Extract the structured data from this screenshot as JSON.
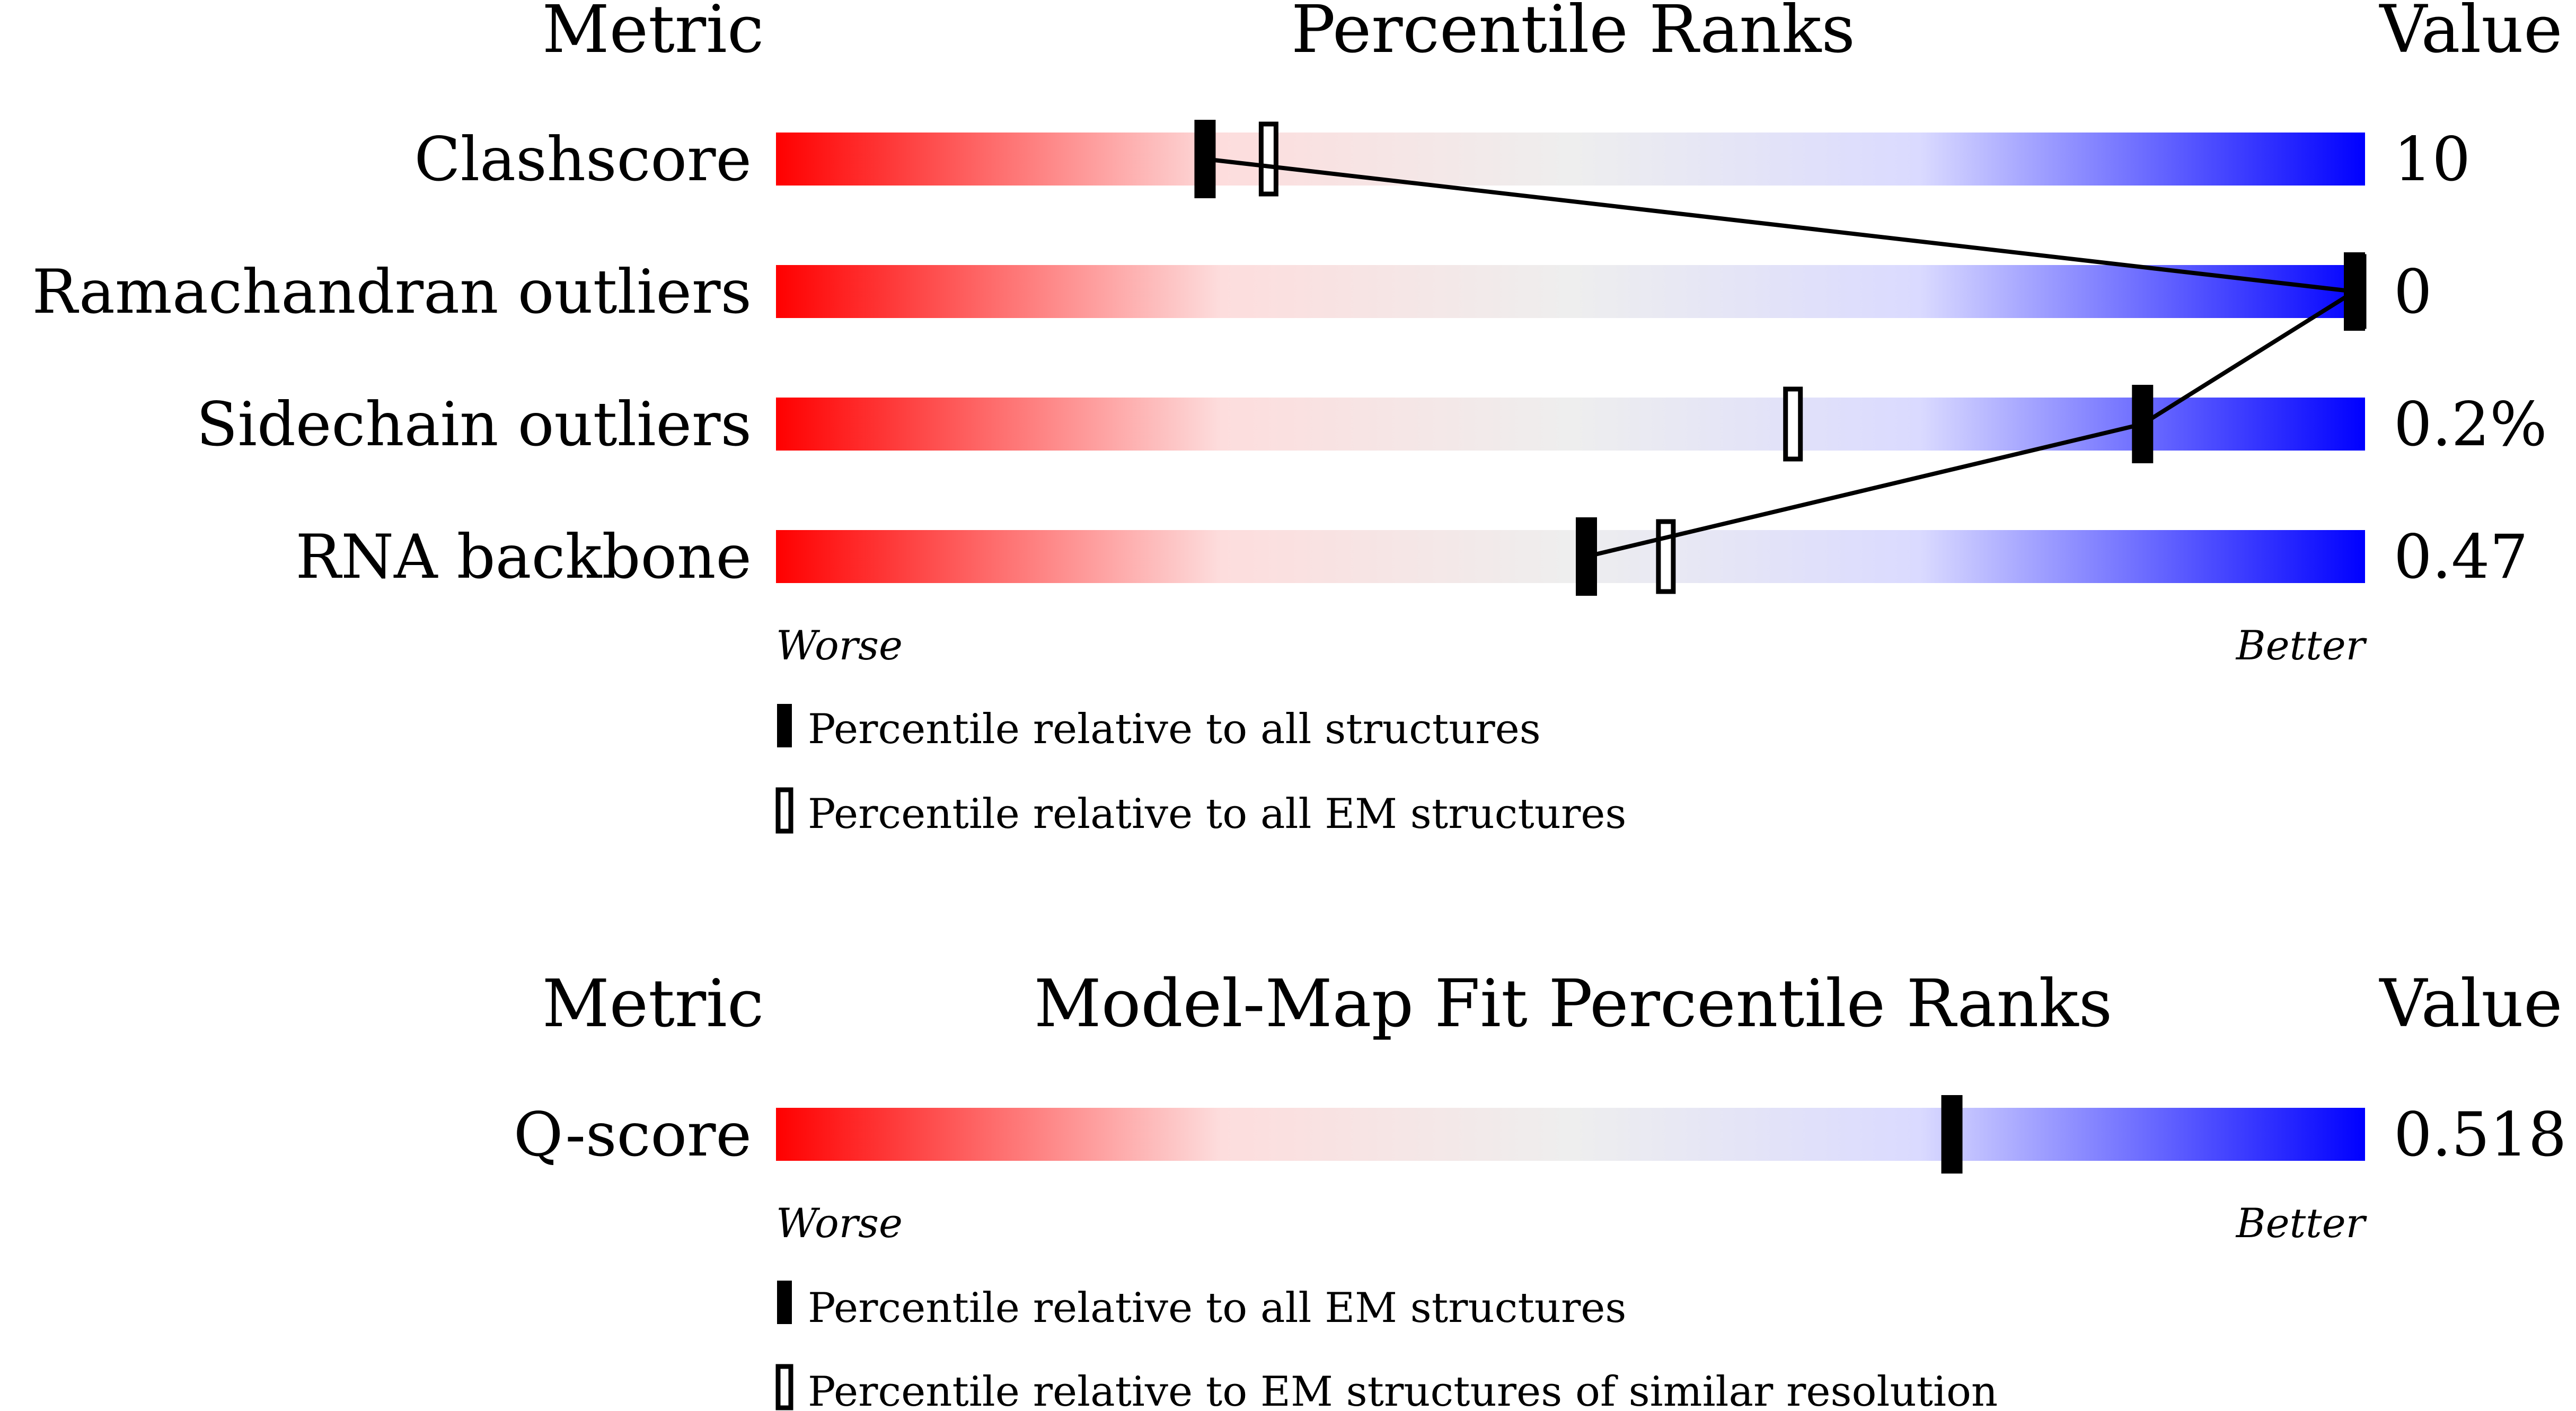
{
  "chart_data": [
    {
      "type": "bar",
      "header": {
        "metric": "Metric",
        "title": "Percentile Ranks",
        "value": "Value"
      },
      "xlim": [
        0,
        100
      ],
      "metrics": [
        {
          "name": "Clashscore",
          "value": "10",
          "percentile_all": 27,
          "percentile_em": 31
        },
        {
          "name": "Ramachandran outliers",
          "value": "0",
          "percentile_all": 100,
          "percentile_em": 100
        },
        {
          "name": "Sidechain outliers",
          "value": "0.2%",
          "percentile_all": 86,
          "percentile_em": 64
        },
        {
          "name": "RNA backbone",
          "value": "0.47",
          "percentile_all": 51,
          "percentile_em": 56
        }
      ],
      "scale_labels": {
        "worse": "Worse",
        "better": "Better"
      },
      "legend": {
        "filled": "Percentile relative to all structures",
        "open": "Percentile relative to all EM structures"
      }
    },
    {
      "type": "bar",
      "header": {
        "metric": "Metric",
        "title": "Model-Map Fit Percentile Ranks",
        "value": "Value"
      },
      "xlim": [
        0,
        100
      ],
      "metrics": [
        {
          "name": "Q-score",
          "value": "0.518",
          "percentile_all": 74
        }
      ],
      "scale_labels": {
        "worse": "Worse",
        "better": "Better"
      },
      "legend": {
        "filled": "Percentile relative to all EM structures",
        "open": "Percentile relative to EM structures of similar resolution"
      }
    }
  ],
  "colors": {
    "worse": "#ff0000",
    "mid": "#eeeeee",
    "better": "#0000ff",
    "marker": "#000000"
  }
}
